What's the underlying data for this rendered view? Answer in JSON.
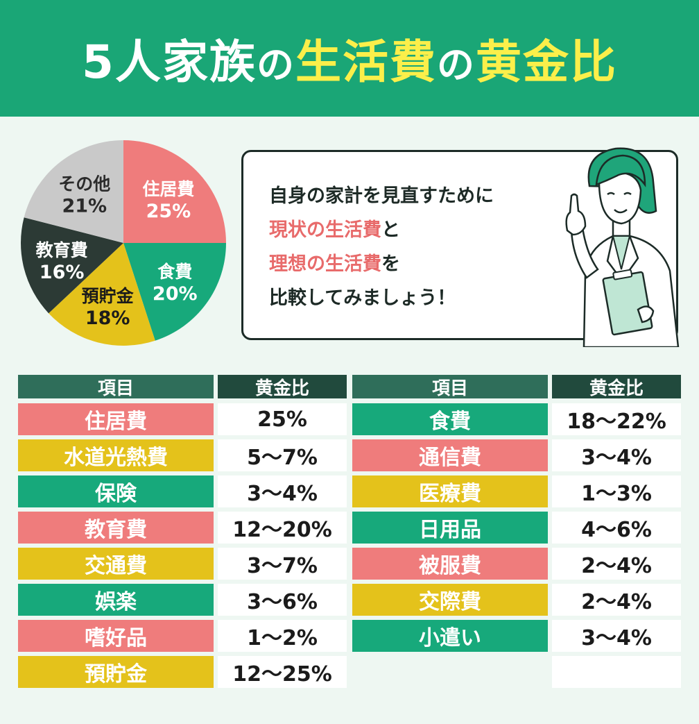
{
  "header": {
    "title_parts": [
      "5人家族",
      "の",
      "生活費",
      "の",
      "黄金比"
    ]
  },
  "colors": {
    "pink": "#ef7c7c",
    "yellow": "#e4c21b",
    "green": "#17a97b",
    "dark": "#2c3a35",
    "gray": "#c9c9c9",
    "header_green": "#1aa676",
    "highlight_yellow": "#fbef4a"
  },
  "speech": {
    "line1": "自身の家計を見直すために",
    "line2_hl": "現状の生活費",
    "line2_rest": "と",
    "line3_hl": "理想の生活費",
    "line3_rest": "を",
    "line4": "比較してみましょう！"
  },
  "chart_data": {
    "type": "pie",
    "slices": [
      {
        "label": "住居費",
        "value": 25,
        "value_label": "25%",
        "color": "#ef7c7c",
        "text_color": "#ffffff"
      },
      {
        "label": "食費",
        "value": 20,
        "value_label": "20%",
        "color": "#17a97b",
        "text_color": "#ffffff"
      },
      {
        "label": "預貯金",
        "value": 18,
        "value_label": "18%",
        "color": "#e4c21b",
        "text_color": "#1b1b1b"
      },
      {
        "label": "教育費",
        "value": 16,
        "value_label": "16%",
        "color": "#2c3a35",
        "text_color": "#ffffff"
      },
      {
        "label": "その他",
        "value": 21,
        "value_label": "21%",
        "color": "#c9c9c9",
        "text_color": "#2b2b2b"
      }
    ]
  },
  "table": {
    "headers": {
      "item": "項目",
      "ratio": "黄金比"
    },
    "left_rows": [
      {
        "item": "住居費",
        "value": "25%",
        "color": "pink"
      },
      {
        "item": "水道光熱費",
        "value": "5〜7%",
        "color": "yellow"
      },
      {
        "item": "保険",
        "value": "3〜4%",
        "color": "green"
      },
      {
        "item": "教育費",
        "value": "12〜20%",
        "color": "pink"
      },
      {
        "item": "交通費",
        "value": "3〜7%",
        "color": "yellow"
      },
      {
        "item": "娯楽",
        "value": "3〜6%",
        "color": "green"
      },
      {
        "item": "嗜好品",
        "value": "1〜2%",
        "color": "pink"
      },
      {
        "item": "預貯金",
        "value": "12〜25%",
        "color": "yellow"
      }
    ],
    "right_rows": [
      {
        "item": "食費",
        "value": "18〜22%",
        "color": "green"
      },
      {
        "item": "通信費",
        "value": "3〜4%",
        "color": "pink"
      },
      {
        "item": "医療費",
        "value": "1〜3%",
        "color": "yellow"
      },
      {
        "item": "日用品",
        "value": "4〜6%",
        "color": "green"
      },
      {
        "item": "被服費",
        "value": "2〜4%",
        "color": "pink"
      },
      {
        "item": "交際費",
        "value": "2〜4%",
        "color": "yellow"
      },
      {
        "item": "小遣い",
        "value": "3〜4%",
        "color": "green"
      }
    ]
  }
}
